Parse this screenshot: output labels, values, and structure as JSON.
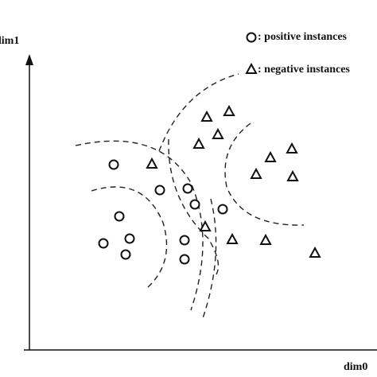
{
  "axes": {
    "y_label": "dim1",
    "x_label": "dim0"
  },
  "legend": {
    "positive": ": positive instances",
    "negative": ": negative instances"
  }
}
